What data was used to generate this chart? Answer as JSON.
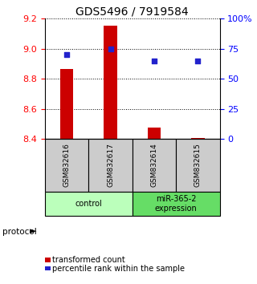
{
  "title": "GDS5496 / 7919584",
  "samples": [
    "GSM832616",
    "GSM832617",
    "GSM832614",
    "GSM832615"
  ],
  "transformed_counts": [
    8.865,
    9.15,
    8.475,
    8.405
  ],
  "percentile_ranks": [
    70,
    75,
    65,
    65
  ],
  "ylim_left": [
    8.4,
    9.2
  ],
  "yticks_left": [
    8.4,
    8.6,
    8.8,
    9.0,
    9.2
  ],
  "yticks_right": [
    0,
    25,
    50,
    75,
    100
  ],
  "bar_color": "#cc0000",
  "dot_color": "#2222cc",
  "groups": [
    {
      "label": "control",
      "indices": [
        0,
        1
      ],
      "color": "#bbffbb"
    },
    {
      "label": "miR-365-2\nexpression",
      "indices": [
        2,
        3
      ],
      "color": "#66dd66"
    }
  ],
  "legend_bar_label": "transformed count",
  "legend_dot_label": "percentile rank within the sample",
  "protocol_label": "protocol",
  "sample_box_color": "#cccccc",
  "title_fontsize": 10,
  "tick_fontsize": 8,
  "bar_width": 0.3
}
